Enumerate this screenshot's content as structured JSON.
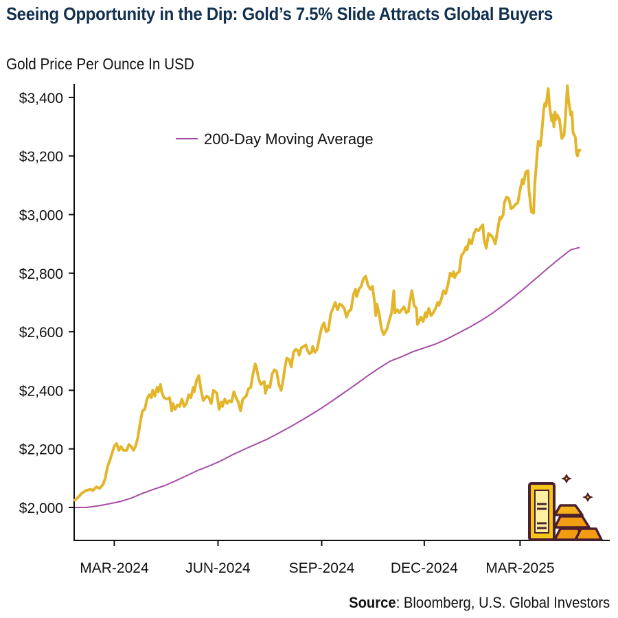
{
  "header": {
    "title": "Seeing Opportunity in the Dip: Gold’s 7.5% Slide Attracts Global Buyers",
    "subtitle": "Gold Price Per Ounce In USD"
  },
  "footer": {
    "source_label": "Source",
    "source_text": ": Bloomberg, U.S. Global Investors"
  },
  "colors": {
    "gold": "#e3b52a",
    "moving_average": "#a64ca6",
    "title": "#12304f",
    "axis": "#111111"
  },
  "decoration": {
    "icon": "gold-bars-icon"
  },
  "chart_data": {
    "type": "line",
    "title": "Gold Price Per Ounce In USD",
    "xlabel": "",
    "ylabel": "",
    "ylim": [
      1890,
      3450
    ],
    "yticks": [
      2000,
      2200,
      2400,
      2600,
      2800,
      3000,
      3200,
      3400
    ],
    "ytick_labels": [
      "$2,000",
      "$2,200",
      "$2,400",
      "$2,600",
      "$2,800",
      "$3,000",
      "$3,200",
      "$3,400"
    ],
    "xlim_days": [
      0,
      475
    ],
    "xticks_days": [
      35,
      127,
      219,
      310,
      395
    ],
    "xtick_labels": [
      "MAR-2024",
      "JUN-2024",
      "SEP-2024",
      "DEC-2024",
      "MAR-2025"
    ],
    "grid": false,
    "legend": {
      "position": "top-left",
      "entries": [
        "200-Day Moving Average"
      ]
    },
    "x_unit": "days since 2024-01-26",
    "series": [
      {
        "name": "Gold Price",
        "color": "#e3b52a",
        "points": [
          [
            0,
            2025
          ],
          [
            3,
            2035
          ],
          [
            6,
            2048
          ],
          [
            10,
            2058
          ],
          [
            14,
            2062
          ],
          [
            16,
            2058
          ],
          [
            19,
            2070
          ],
          [
            22,
            2065
          ],
          [
            25,
            2078
          ],
          [
            27,
            2100
          ],
          [
            29,
            2140
          ],
          [
            31,
            2160
          ],
          [
            33,
            2185
          ],
          [
            35,
            2210
          ],
          [
            37,
            2218
          ],
          [
            39,
            2195
          ],
          [
            41,
            2208
          ],
          [
            43,
            2195
          ],
          [
            46,
            2195
          ],
          [
            48,
            2215
          ],
          [
            50,
            2208
          ],
          [
            52,
            2195
          ],
          [
            54,
            2210
          ],
          [
            56,
            2240
          ],
          [
            58,
            2290
          ],
          [
            60,
            2330
          ],
          [
            62,
            2335
          ],
          [
            64,
            2370
          ],
          [
            66,
            2385
          ],
          [
            68,
            2375
          ],
          [
            69,
            2400
          ],
          [
            71,
            2380
          ],
          [
            73,
            2410
          ],
          [
            74,
            2395
          ],
          [
            76,
            2420
          ],
          [
            77,
            2395
          ],
          [
            79,
            2375
          ],
          [
            82,
            2370
          ],
          [
            84,
            2375
          ],
          [
            86,
            2330
          ],
          [
            87,
            2355
          ],
          [
            89,
            2335
          ],
          [
            91,
            2350
          ],
          [
            93,
            2345
          ],
          [
            95,
            2370
          ],
          [
            97,
            2345
          ],
          [
            99,
            2355
          ],
          [
            101,
            2385
          ],
          [
            103,
            2375
          ],
          [
            105,
            2410
          ],
          [
            106,
            2395
          ],
          [
            108,
            2435
          ],
          [
            110,
            2450
          ],
          [
            112,
            2400
          ],
          [
            114,
            2365
          ],
          [
            117,
            2380
          ],
          [
            119,
            2375
          ],
          [
            121,
            2355
          ],
          [
            123,
            2400
          ],
          [
            126,
            2390
          ],
          [
            128,
            2335
          ],
          [
            130,
            2360
          ],
          [
            131,
            2345
          ],
          [
            133,
            2370
          ],
          [
            135,
            2355
          ],
          [
            137,
            2365
          ],
          [
            139,
            2360
          ],
          [
            141,
            2395
          ],
          [
            143,
            2375
          ],
          [
            145,
            2360
          ],
          [
            147,
            2330
          ],
          [
            149,
            2370
          ],
          [
            152,
            2380
          ],
          [
            154,
            2405
          ],
          [
            156,
            2410
          ],
          [
            158,
            2455
          ],
          [
            160,
            2490
          ],
          [
            161,
            2480
          ],
          [
            163,
            2440
          ],
          [
            165,
            2420
          ],
          [
            168,
            2430
          ],
          [
            169,
            2390
          ],
          [
            171,
            2415
          ],
          [
            173,
            2410
          ],
          [
            175,
            2455
          ],
          [
            177,
            2470
          ],
          [
            179,
            2465
          ],
          [
            181,
            2420
          ],
          [
            183,
            2400
          ],
          [
            185,
            2440
          ],
          [
            186,
            2470
          ],
          [
            188,
            2510
          ],
          [
            190,
            2505
          ],
          [
            192,
            2480
          ],
          [
            194,
            2530
          ],
          [
            196,
            2540
          ],
          [
            198,
            2535
          ],
          [
            199,
            2520
          ],
          [
            201,
            2545
          ],
          [
            203,
            2550
          ],
          [
            205,
            2555
          ],
          [
            206,
            2540
          ],
          [
            208,
            2525
          ],
          [
            210,
            2530
          ],
          [
            211,
            2550
          ],
          [
            213,
            2530
          ],
          [
            215,
            2540
          ],
          [
            217,
            2580
          ],
          [
            219,
            2615
          ],
          [
            221,
            2630
          ],
          [
            223,
            2600
          ],
          [
            225,
            2605
          ],
          [
            227,
            2660
          ],
          [
            229,
            2680
          ],
          [
            231,
            2700
          ],
          [
            233,
            2675
          ],
          [
            235,
            2695
          ],
          [
            237,
            2690
          ],
          [
            239,
            2680
          ],
          [
            241,
            2650
          ],
          [
            243,
            2670
          ],
          [
            245,
            2675
          ],
          [
            247,
            2725
          ],
          [
            249,
            2745
          ],
          [
            250,
            2720
          ],
          [
            252,
            2745
          ],
          [
            254,
            2755
          ],
          [
            256,
            2780
          ],
          [
            258,
            2790
          ],
          [
            260,
            2760
          ],
          [
            262,
            2745
          ],
          [
            264,
            2755
          ],
          [
            266,
            2700
          ],
          [
            267,
            2655
          ],
          [
            268,
            2695
          ],
          [
            270,
            2660
          ],
          [
            272,
            2610
          ],
          [
            274,
            2590
          ],
          [
            277,
            2610
          ],
          [
            279,
            2640
          ],
          [
            281,
            2665
          ],
          [
            283,
            2740
          ],
          [
            284,
            2665
          ],
          [
            286,
            2675
          ],
          [
            288,
            2665
          ],
          [
            290,
            2675
          ],
          [
            292,
            2685
          ],
          [
            294,
            2665
          ],
          [
            296,
            2670
          ],
          [
            297,
            2700
          ],
          [
            299,
            2740
          ],
          [
            301,
            2690
          ],
          [
            303,
            2680
          ],
          [
            304,
            2625
          ],
          [
            306,
            2640
          ],
          [
            307,
            2650
          ],
          [
            309,
            2635
          ],
          [
            311,
            2665
          ],
          [
            312,
            2650
          ],
          [
            314,
            2680
          ],
          [
            316,
            2655
          ],
          [
            318,
            2665
          ],
          [
            320,
            2680
          ],
          [
            322,
            2700
          ],
          [
            323,
            2690
          ],
          [
            325,
            2710
          ],
          [
            327,
            2740
          ],
          [
            329,
            2730
          ],
          [
            331,
            2760
          ],
          [
            333,
            2800
          ],
          [
            335,
            2790
          ],
          [
            336,
            2805
          ],
          [
            337,
            2785
          ],
          [
            339,
            2800
          ],
          [
            341,
            2805
          ],
          [
            343,
            2860
          ],
          [
            345,
            2870
          ],
          [
            347,
            2890
          ],
          [
            348,
            2880
          ],
          [
            350,
            2915
          ],
          [
            352,
            2900
          ],
          [
            354,
            2935
          ],
          [
            356,
            2950
          ],
          [
            358,
            2945
          ],
          [
            360,
            2955
          ],
          [
            362,
            2965
          ],
          [
            363,
            2915
          ],
          [
            365,
            2885
          ],
          [
            367,
            2935
          ],
          [
            369,
            2930
          ],
          [
            371,
            2920
          ],
          [
            373,
            2900
          ],
          [
            375,
            2945
          ],
          [
            377,
            2990
          ],
          [
            378,
            2985
          ],
          [
            380,
            3000
          ],
          [
            381,
            3040
          ],
          [
            383,
            3060
          ],
          [
            385,
            3055
          ],
          [
            387,
            3020
          ],
          [
            389,
            3025
          ],
          [
            391,
            3035
          ],
          [
            393,
            3040
          ],
          [
            395,
            3085
          ],
          [
            397,
            3120
          ],
          [
            398,
            3105
          ],
          [
            400,
            3145
          ],
          [
            402,
            3150
          ],
          [
            403,
            3080
          ],
          [
            405,
            3010
          ],
          [
            407,
            3005
          ],
          [
            408,
            3100
          ],
          [
            410,
            3200
          ],
          [
            411,
            3250
          ],
          [
            413,
            3235
          ],
          [
            414,
            3270
          ],
          [
            416,
            3360
          ],
          [
            417,
            3380
          ],
          [
            418,
            3370
          ],
          [
            420,
            3430
          ],
          [
            421,
            3375
          ],
          [
            423,
            3320
          ],
          [
            424,
            3340
          ],
          [
            425,
            3300
          ],
          [
            426,
            3350
          ],
          [
            427,
            3325
          ],
          [
            428,
            3340
          ],
          [
            430,
            3325
          ],
          [
            432,
            3260
          ],
          [
            434,
            3270
          ],
          [
            435,
            3320
          ],
          [
            437,
            3440
          ],
          [
            438,
            3390
          ],
          [
            440,
            3340
          ],
          [
            441,
            3350
          ],
          [
            442,
            3280
          ],
          [
            444,
            3265
          ],
          [
            445,
            3210
          ],
          [
            446,
            3200
          ],
          [
            447,
            3220
          ],
          [
            448,
            3220
          ]
        ]
      },
      {
        "name": "200-Day Moving Average",
        "color": "#a64ca6",
        "points": [
          [
            0,
            2000
          ],
          [
            10,
            2000
          ],
          [
            20,
            2005
          ],
          [
            30,
            2012
          ],
          [
            40,
            2020
          ],
          [
            50,
            2032
          ],
          [
            60,
            2048
          ],
          [
            70,
            2062
          ],
          [
            80,
            2075
          ],
          [
            90,
            2092
          ],
          [
            100,
            2110
          ],
          [
            110,
            2128
          ],
          [
            120,
            2143
          ],
          [
            130,
            2160
          ],
          [
            140,
            2180
          ],
          [
            150,
            2198
          ],
          [
            160,
            2215
          ],
          [
            170,
            2232
          ],
          [
            180,
            2252
          ],
          [
            190,
            2273
          ],
          [
            200,
            2295
          ],
          [
            210,
            2318
          ],
          [
            220,
            2342
          ],
          [
            230,
            2368
          ],
          [
            240,
            2395
          ],
          [
            250,
            2422
          ],
          [
            260,
            2450
          ],
          [
            270,
            2476
          ],
          [
            280,
            2500
          ],
          [
            290,
            2515
          ],
          [
            300,
            2532
          ],
          [
            310,
            2545
          ],
          [
            320,
            2558
          ],
          [
            330,
            2575
          ],
          [
            340,
            2595
          ],
          [
            350,
            2615
          ],
          [
            360,
            2637
          ],
          [
            370,
            2662
          ],
          [
            380,
            2690
          ],
          [
            390,
            2720
          ],
          [
            400,
            2752
          ],
          [
            410,
            2785
          ],
          [
            420,
            2818
          ],
          [
            430,
            2850
          ],
          [
            440,
            2880
          ],
          [
            448,
            2888
          ]
        ]
      }
    ]
  }
}
